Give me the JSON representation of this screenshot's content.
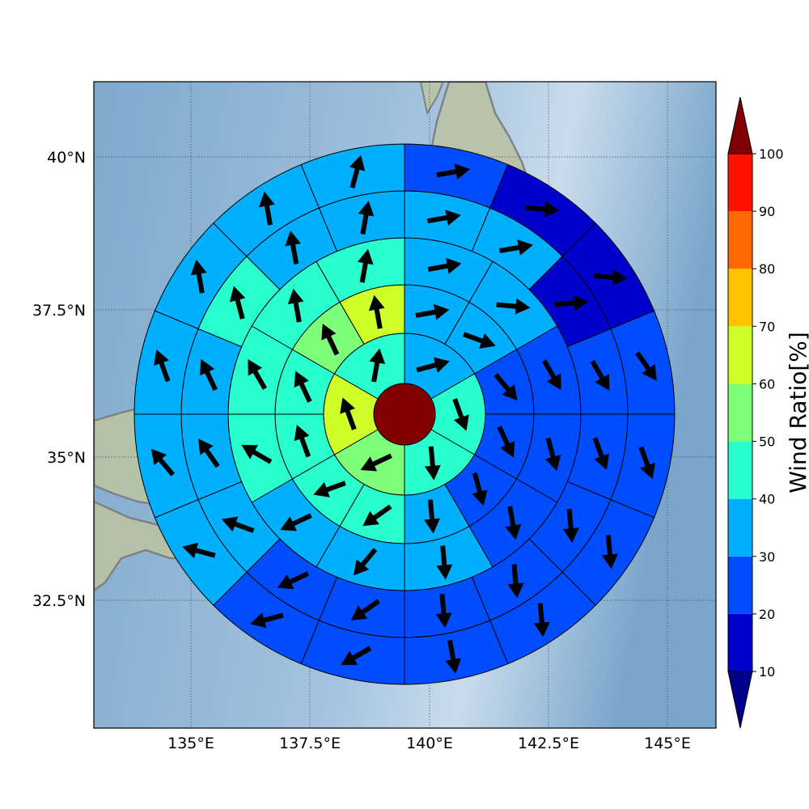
{
  "map": {
    "projection_center": "35.7°N 139.4°E",
    "lon_range": [
      132.9,
      146.0
    ],
    "lat_range": [
      30.5,
      41.2
    ],
    "grid_lon": [
      135,
      137.5,
      140,
      142.5,
      145
    ],
    "grid_lat": [
      32.5,
      35,
      37.5,
      40
    ],
    "lon_tick_labels": [
      "135°E",
      "137.5°E",
      "140°E",
      "142.5°E",
      "145°E"
    ],
    "lat_tick_labels": [
      "32.5°N",
      "35°N",
      "37.5°N",
      "40°N"
    ],
    "background": "shaded relief with grey coastlines",
    "grid_style": "dotted"
  },
  "colorbar": {
    "title": "Wind Ratio[%]",
    "tick_labels": [
      "10",
      "20",
      "30",
      "40",
      "50",
      "60",
      "70",
      "80",
      "90",
      "100"
    ],
    "colors": [
      "#0000cd",
      "#004cff",
      "#00b0ff",
      "#29ffce",
      "#7dff7a",
      "#ceff29",
      "#ffc400",
      "#ff6800",
      "#ff1300"
    ],
    "under_color": "#00008b",
    "over_color": "#800000",
    "extend": "both"
  },
  "chart_data": {
    "type": "heatmap",
    "description_kind": "polar sectors of wind ratio with wind direction arrows",
    "center": {
      "lon": 139.4,
      "lat": 35.7,
      "value_color": "#800000"
    },
    "rings": [
      {
        "ring": 1,
        "sectors": 6,
        "ratio": [
          30,
          40,
          40,
          50,
          60,
          40
        ],
        "arrow_deg": [
          75,
          160,
          175,
          245,
          340,
          10
        ]
      },
      {
        "ring": 2,
        "sectors": 12,
        "ratio": [
          30,
          30,
          20,
          20,
          20,
          30,
          40,
          40,
          40,
          40,
          50,
          60
        ],
        "arrow_deg": [
          80,
          110,
          140,
          155,
          165,
          175,
          235,
          250,
          340,
          335,
          335,
          350
        ]
      },
      {
        "ring": 3,
        "sectors": 12,
        "ratio": [
          30,
          30,
          20,
          20,
          20,
          30,
          30,
          30,
          40,
          40,
          40,
          40
        ],
        "arrow_deg": [
          80,
          95,
          150,
          165,
          170,
          175,
          220,
          245,
          300,
          330,
          350,
          10
        ]
      },
      {
        "ring": 4,
        "sectors": 16,
        "ratio": [
          30,
          30,
          10,
          20,
          20,
          20,
          20,
          20,
          20,
          20,
          30,
          30,
          30,
          40,
          30,
          30
        ],
        "arrow_deg": [
          80,
          80,
          85,
          150,
          160,
          175,
          175,
          175,
          235,
          245,
          290,
          325,
          335,
          345,
          350,
          10
        ]
      },
      {
        "ring": 5,
        "sectors": 16,
        "ratio": [
          20,
          10,
          10,
          20,
          20,
          20,
          20,
          20,
          20,
          20,
          30,
          30,
          30,
          30,
          30,
          30
        ],
        "arrow_deg": [
          80,
          95,
          95,
          145,
          160,
          175,
          175,
          170,
          240,
          255,
          285,
          320,
          340,
          350,
          350,
          15
        ]
      },
      {
        "ring": 6,
        "sectors": 16,
        "ratio": [
          10,
          10,
          10,
          20,
          20,
          10,
          20,
          20,
          10,
          10,
          20,
          30,
          30,
          30,
          30,
          30
        ],
        "arrow_deg": [
          100,
          105,
          100,
          155,
          170,
          175,
          175,
          175,
          215,
          255,
          295,
          330,
          340,
          345,
          345,
          10
        ]
      }
    ]
  }
}
